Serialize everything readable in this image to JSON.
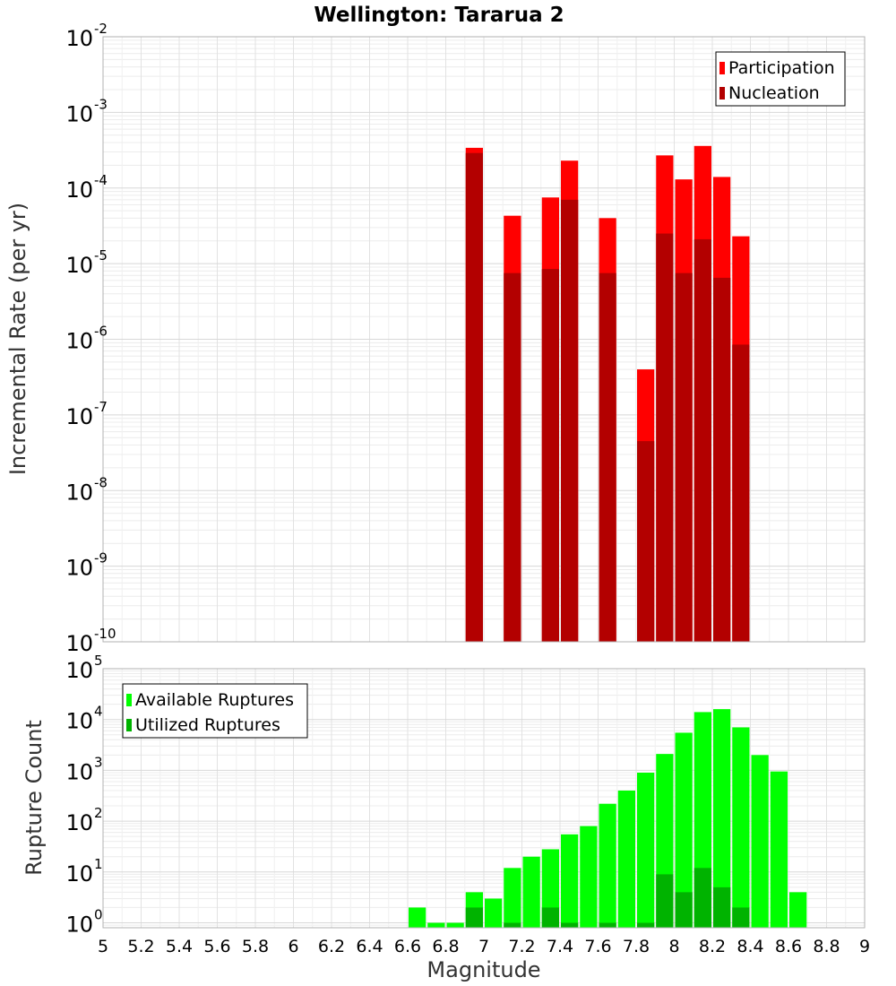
{
  "chart_data": [
    {
      "type": "bar",
      "title": "Wellington: Tararua 2",
      "ylabel": "Incremental Rate (per yr)",
      "yscale": "log",
      "ylim": [
        1e-10,
        0.01
      ],
      "xlim": [
        5,
        9
      ],
      "legend": "top-right",
      "series": [
        {
          "name": "Participation",
          "color": "#ff0000",
          "points": [
            {
              "x": 6.95,
              "y": 0.00034
            },
            {
              "x": 7.15,
              "y": 4.3e-05
            },
            {
              "x": 7.35,
              "y": 7.5e-05
            },
            {
              "x": 7.45,
              "y": 0.00023
            },
            {
              "x": 7.65,
              "y": 4e-05
            },
            {
              "x": 7.85,
              "y": 4e-07
            },
            {
              "x": 7.95,
              "y": 0.00027
            },
            {
              "x": 8.05,
              "y": 0.00013
            },
            {
              "x": 8.15,
              "y": 0.00036
            },
            {
              "x": 8.25,
              "y": 0.00014
            },
            {
              "x": 8.35,
              "y": 2.3e-05
            }
          ]
        },
        {
          "name": "Nucleation",
          "color": "#b30000",
          "points": [
            {
              "x": 6.95,
              "y": 0.00029
            },
            {
              "x": 7.15,
              "y": 7.5e-06
            },
            {
              "x": 7.35,
              "y": 8.5e-06
            },
            {
              "x": 7.45,
              "y": 7e-05
            },
            {
              "x": 7.65,
              "y": 7.5e-06
            },
            {
              "x": 7.85,
              "y": 4.5e-08
            },
            {
              "x": 7.95,
              "y": 2.5e-05
            },
            {
              "x": 8.05,
              "y": 7.5e-06
            },
            {
              "x": 8.15,
              "y": 2.1e-05
            },
            {
              "x": 8.25,
              "y": 6.5e-06
            },
            {
              "x": 8.35,
              "y": 8.5e-07
            }
          ]
        }
      ]
    },
    {
      "type": "bar",
      "xlabel": "Magnitude",
      "ylabel": "Rupture Count",
      "yscale": "log",
      "ylim": [
        0.8,
        100000
      ],
      "xlim": [
        5,
        9
      ],
      "legend": "top-left",
      "series": [
        {
          "name": "Available Ruptures",
          "color": "#00ff00",
          "points": [
            {
              "x": 6.65,
              "y": 2
            },
            {
              "x": 6.75,
              "y": 1
            },
            {
              "x": 6.85,
              "y": 1
            },
            {
              "x": 6.95,
              "y": 4
            },
            {
              "x": 7.05,
              "y": 3
            },
            {
              "x": 7.15,
              "y": 12
            },
            {
              "x": 7.25,
              "y": 20
            },
            {
              "x": 7.35,
              "y": 28
            },
            {
              "x": 7.45,
              "y": 55
            },
            {
              "x": 7.55,
              "y": 80
            },
            {
              "x": 7.65,
              "y": 220
            },
            {
              "x": 7.75,
              "y": 400
            },
            {
              "x": 7.85,
              "y": 900
            },
            {
              "x": 7.95,
              "y": 2100
            },
            {
              "x": 8.05,
              "y": 5500
            },
            {
              "x": 8.15,
              "y": 14000
            },
            {
              "x": 8.25,
              "y": 16000
            },
            {
              "x": 8.35,
              "y": 7000
            },
            {
              "x": 8.45,
              "y": 2000
            },
            {
              "x": 8.55,
              "y": 950
            },
            {
              "x": 8.65,
              "y": 4
            }
          ]
        },
        {
          "name": "Utilized Ruptures",
          "color": "#00b300",
          "points": [
            {
              "x": 6.95,
              "y": 2
            },
            {
              "x": 7.15,
              "y": 1
            },
            {
              "x": 7.35,
              "y": 2
            },
            {
              "x": 7.45,
              "y": 1
            },
            {
              "x": 7.65,
              "y": 1
            },
            {
              "x": 7.85,
              "y": 1
            },
            {
              "x": 7.95,
              "y": 9
            },
            {
              "x": 8.05,
              "y": 4
            },
            {
              "x": 8.15,
              "y": 12
            },
            {
              "x": 8.25,
              "y": 5
            },
            {
              "x": 8.35,
              "y": 2
            }
          ]
        }
      ],
      "xticks": [
        "5",
        "5.2",
        "5.4",
        "5.6",
        "5.8",
        "6",
        "6.2",
        "6.4",
        "6.6",
        "6.8",
        "7",
        "7.2",
        "7.4",
        "7.6",
        "7.8",
        "8",
        "8.2",
        "8.4",
        "8.6",
        "8.8",
        "9"
      ]
    }
  ]
}
